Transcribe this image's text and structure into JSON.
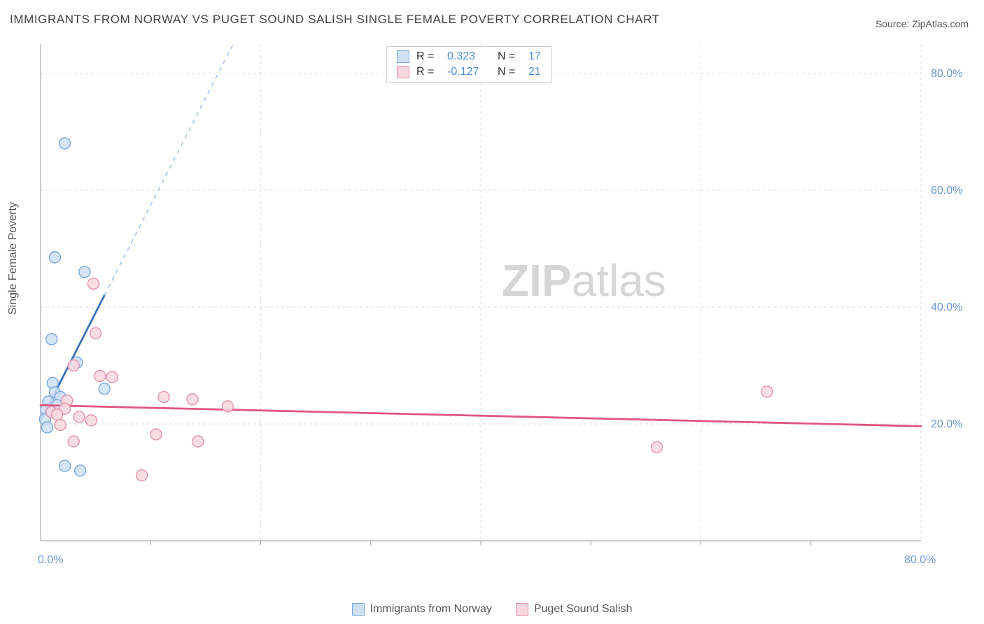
{
  "title": "IMMIGRANTS FROM NORWAY VS PUGET SOUND SALISH SINGLE FEMALE POVERTY CORRELATION CHART",
  "source_label": "Source: ",
  "source_name": "ZipAtlas.com",
  "ylabel": "Single Female Poverty",
  "watermark_a": "ZIP",
  "watermark_b": "atlas",
  "chart": {
    "type": "scatter",
    "xlim": [
      0,
      80
    ],
    "ylim": [
      0,
      85
    ],
    "x_ticks": [
      0,
      80
    ],
    "x_tick_labels": [
      "0.0%",
      "80.0%"
    ],
    "y_ticks": [
      20,
      40,
      60,
      80
    ],
    "y_tick_labels": [
      "20.0%",
      "40.0%",
      "60.0%",
      "80.0%"
    ],
    "minor_x_ticks": [
      10,
      20,
      30,
      40,
      50,
      60,
      70
    ],
    "grid_color": "#dedede",
    "grid_dash": "4,4",
    "axis_color": "#999999",
    "background_color": "#ffffff",
    "marker_radius": 8,
    "marker_stroke_width": 1.4,
    "line_width_solid": 2.8,
    "line_width_dash": 1.2,
    "series": [
      {
        "key": "norway",
        "label": "Immigrants from Norway",
        "fill": "#cfe0f4",
        "stroke": "#7aa9da",
        "line_color": "#3d70b2",
        "dash_color": "#8cb1e0",
        "r_value": "0.323",
        "n_value": "17",
        "points": [
          [
            2.2,
            68.0
          ],
          [
            1.3,
            48.5
          ],
          [
            4.0,
            46.0
          ],
          [
            1.0,
            34.5
          ],
          [
            3.3,
            30.5
          ],
          [
            1.1,
            27.0
          ],
          [
            5.8,
            26.0
          ],
          [
            1.3,
            25.4
          ],
          [
            1.8,
            24.6
          ],
          [
            0.7,
            23.8
          ],
          [
            1.5,
            23.2
          ],
          [
            0.5,
            22.4
          ],
          [
            1.0,
            22.0
          ],
          [
            0.4,
            20.8
          ],
          [
            0.6,
            19.4
          ],
          [
            2.2,
            12.8
          ],
          [
            3.6,
            12.0
          ]
        ],
        "trend_solid": [
          [
            0,
            20.5
          ],
          [
            5.8,
            42.0
          ]
        ],
        "trend_dashed": [
          [
            5.8,
            42.0
          ],
          [
            17.5,
            85.0
          ]
        ]
      },
      {
        "key": "salish",
        "label": "Puget Sound Salish",
        "fill": "#f7d7e0",
        "stroke": "#e393ab",
        "line_color": "#e0567f",
        "r_value": "-0.127",
        "n_value": "21",
        "points": [
          [
            4.8,
            44.0
          ],
          [
            5.0,
            35.5
          ],
          [
            3.0,
            30.0
          ],
          [
            5.4,
            28.2
          ],
          [
            6.5,
            28.0
          ],
          [
            66.0,
            25.5
          ],
          [
            11.2,
            24.6
          ],
          [
            13.8,
            24.2
          ],
          [
            2.4,
            24.0
          ],
          [
            17.0,
            23.0
          ],
          [
            2.2,
            22.6
          ],
          [
            1.0,
            22.0
          ],
          [
            1.5,
            21.6
          ],
          [
            3.5,
            21.2
          ],
          [
            4.6,
            20.6
          ],
          [
            1.8,
            19.8
          ],
          [
            10.5,
            18.2
          ],
          [
            3.0,
            17.0
          ],
          [
            14.3,
            17.0
          ],
          [
            56.0,
            16.0
          ],
          [
            9.2,
            11.2
          ]
        ],
        "trend_solid": [
          [
            0,
            23.2
          ],
          [
            80,
            19.6
          ]
        ]
      }
    ]
  }
}
